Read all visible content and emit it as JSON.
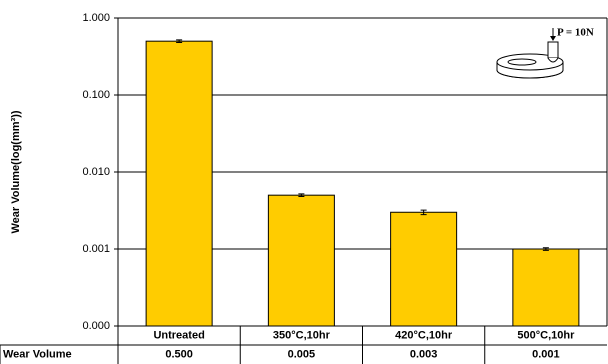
{
  "chart_data": {
    "type": "bar",
    "y_label": "Wear Volume(log(mm³))",
    "annotation": "P = 10N",
    "categories": [
      "Untreated",
      "350°C,10hr",
      "420°C,10hr",
      "500°C,10hr"
    ],
    "series": [
      {
        "name": "Wear Volume",
        "color": "#FFCC00",
        "values": [
          0.5,
          0.005,
          0.003,
          0.001
        ],
        "value_labels": [
          "0.500",
          "0.005",
          "0.003",
          "0.001"
        ],
        "errors": [
          0.02,
          0.0002,
          0.0002,
          4e-05
        ]
      }
    ],
    "ylim": [
      0.0001,
      1
    ],
    "log_scale": true,
    "grid": true,
    "yticks": [
      {
        "value": 0.0001,
        "label": "0.000"
      },
      {
        "value": 0.001,
        "label": "0.001"
      },
      {
        "value": 0.01,
        "label": "0.010"
      },
      {
        "value": 0.1,
        "label": "0.100"
      },
      {
        "value": 1,
        "label": "1.000"
      }
    ]
  }
}
